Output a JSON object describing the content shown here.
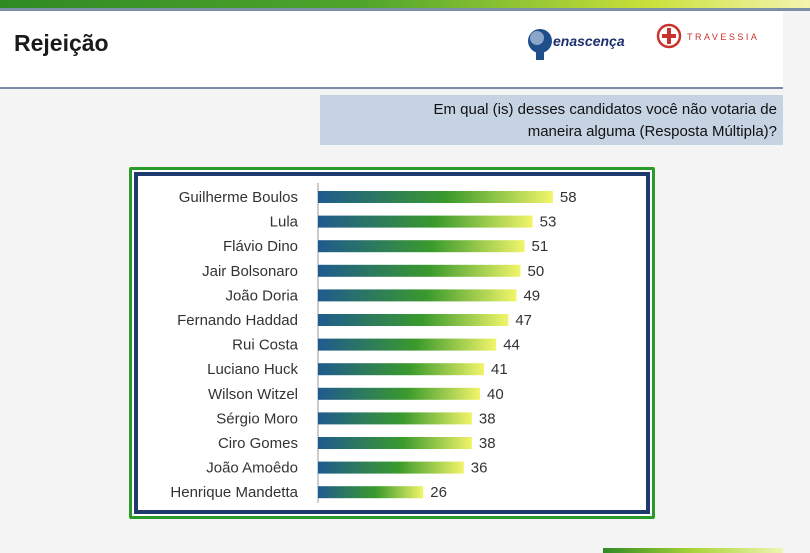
{
  "header": {
    "title": "Rejeição",
    "logo_renascenca": "enascença",
    "logo_travessia": "TRAVESSIA"
  },
  "question": {
    "line1": "Em qual (is) desses candidatos você não votaria de",
    "line2": "maneira alguma (Resposta Múltipla)?"
  },
  "colors": {
    "bar_start": "#1f5a8f",
    "bar_mid": "#3a9a2c",
    "bar_end": "#f2f56a",
    "frame_green": "#2a9b2a",
    "frame_blue": "#1e3b6e"
  },
  "chart_data": {
    "type": "bar",
    "orientation": "horizontal",
    "title": "",
    "xlabel": "",
    "ylabel": "",
    "categories": [
      "Guilherme Boulos",
      "Lula",
      "Flávio Dino",
      "Jair Bolsonaro",
      "João Doria",
      "Fernando Haddad",
      "Rui Costa",
      "Luciano Huck",
      "Wilson Witzel",
      "Sérgio Moro",
      "Ciro Gomes",
      "João Amoêdo",
      "Henrique Mandetta"
    ],
    "values": [
      58,
      53,
      51,
      50,
      49,
      47,
      44,
      41,
      40,
      38,
      38,
      36,
      26
    ],
    "grid": false,
    "data_labels": true
  }
}
